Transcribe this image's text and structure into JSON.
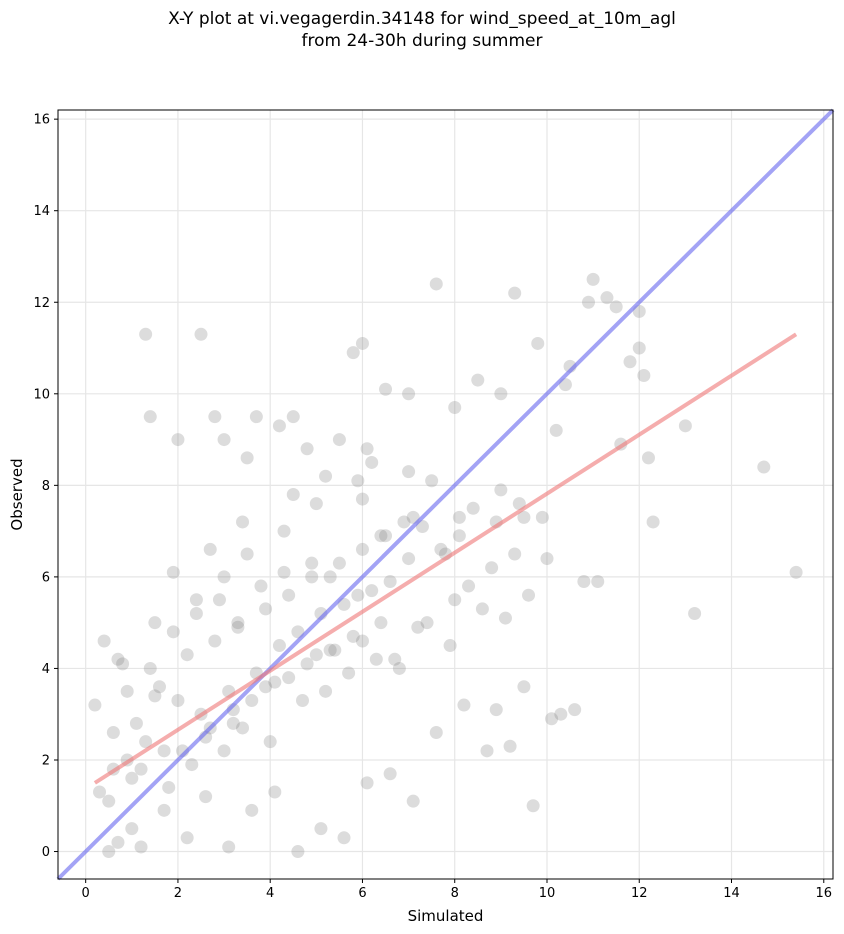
{
  "chart_data": {
    "type": "scatter",
    "title_line1": "X-Y plot at vi.vegagerdin.34148 for wind_speed_at_10m_agl",
    "title_line2": "from 24-30h during summer",
    "xlabel": "Simulated",
    "ylabel": "Observed",
    "xlim": [
      -0.6,
      16.2
    ],
    "ylim": [
      -0.6,
      16.2
    ],
    "x_ticks": [
      0,
      2,
      4,
      6,
      8,
      10,
      12,
      14,
      16
    ],
    "y_ticks": [
      0,
      2,
      4,
      6,
      8,
      10,
      12,
      14,
      16
    ],
    "grid": true,
    "colors": {
      "points": "#808080",
      "one_to_one": "#6666ee",
      "fit": "#ee7777"
    },
    "reference_lines": [
      {
        "kind": "one-to-one",
        "x": [
          -0.6,
          16.2
        ],
        "y": [
          -0.6,
          16.2
        ]
      },
      {
        "kind": "linear-fit",
        "x": [
          0.2,
          15.4
        ],
        "y": [
          1.5,
          11.3
        ]
      }
    ],
    "points": {
      "x": [
        1.3,
        2.5,
        3.7,
        11.0,
        11.3,
        10.9,
        11.5,
        12.0,
        12.1,
        11.6,
        13.0,
        14.7,
        15.4,
        13.2,
        12.3,
        9.3,
        7.6,
        10.5,
        8.5,
        9.8,
        10.2,
        9.5,
        6.0,
        5.8,
        4.5,
        4.2,
        6.5,
        7.0,
        5.5,
        3.0,
        2.0,
        1.4,
        2.8,
        3.5,
        4.8,
        6.2,
        7.5,
        8.1,
        9.0,
        10.0,
        11.1,
        12.2,
        0.5,
        0.7,
        1.0,
        0.3,
        0.6,
        0.9,
        1.2,
        1.7,
        2.2,
        2.6,
        3.1,
        3.6,
        4.1,
        4.6,
        5.1,
        5.6,
        6.1,
        6.6,
        7.1,
        7.6,
        8.2,
        8.7,
        9.2,
        9.7,
        10.3,
        0.4,
        0.8,
        1.5,
        1.9,
        2.4,
        2.9,
        3.3,
        3.8,
        4.3,
        4.9,
        5.3,
        5.9,
        6.4,
        6.9,
        7.3,
        7.8,
        8.4,
        8.9,
        9.4,
        9.9,
        10.6,
        1.1,
        1.6,
        2.1,
        2.7,
        3.2,
        3.9,
        4.4,
        5.0,
        5.4,
        6.0,
        6.7,
        7.2,
        7.9,
        8.6,
        9.1,
        9.6,
        0.2,
        0.5,
        1.0,
        1.8,
        2.3,
        3.0,
        3.4,
        4.0,
        4.7,
        5.2,
        5.7,
        6.3,
        6.8,
        7.4,
        8.0,
        8.3,
        8.8,
        9.3,
        0.6,
        1.3,
        2.0,
        2.5,
        3.1,
        3.7,
        4.2,
        4.6,
        5.1,
        5.6,
        6.2,
        6.6,
        7.0,
        7.7,
        8.1,
        0.9,
        1.4,
        2.2,
        2.8,
        3.3,
        3.9,
        4.4,
        4.9,
        5.5,
        6.0,
        6.5,
        7.1,
        1.2,
        1.7,
        2.6,
        3.2,
        3.6,
        4.1,
        4.8,
        5.3,
        5.8,
        6.4,
        0.7,
        1.5,
        2.4,
        3.0,
        3.5,
        4.3,
        5.0,
        5.9,
        1.9,
        2.7,
        3.4,
        4.5,
        5.2,
        6.1,
        10.8,
        9.5,
        8.9,
        10.1,
        11.8,
        12.0,
        10.4,
        9.0,
        8.0,
        7.0,
        6.0
      ],
      "y": [
        11.3,
        11.3,
        9.5,
        12.5,
        12.1,
        12.0,
        11.9,
        11.8,
        10.4,
        8.9,
        9.3,
        8.4,
        6.1,
        5.2,
        7.2,
        12.2,
        12.4,
        10.6,
        10.3,
        11.1,
        9.2,
        7.3,
        11.1,
        10.9,
        9.5,
        9.3,
        10.1,
        10.0,
        9.0,
        9.0,
        9.0,
        9.5,
        9.5,
        8.6,
        8.8,
        8.5,
        8.1,
        7.3,
        7.9,
        6.4,
        5.9,
        8.6,
        0.0,
        0.2,
        0.5,
        1.3,
        1.8,
        2.0,
        0.1,
        0.9,
        0.3,
        1.2,
        0.1,
        0.9,
        1.3,
        0.0,
        0.5,
        0.3,
        1.5,
        1.7,
        1.1,
        2.6,
        3.2,
        2.2,
        2.3,
        1.0,
        3.0,
        4.6,
        4.1,
        3.4,
        4.8,
        5.2,
        5.5,
        5.0,
        5.8,
        6.1,
        6.3,
        6.0,
        5.6,
        6.9,
        7.2,
        7.1,
        6.5,
        7.5,
        7.2,
        7.6,
        7.3,
        3.1,
        2.8,
        3.6,
        2.2,
        2.7,
        3.1,
        3.6,
        3.8,
        4.3,
        4.4,
        4.6,
        4.2,
        4.9,
        4.5,
        5.3,
        5.1,
        5.6,
        3.2,
        1.1,
        1.6,
        1.4,
        1.9,
        2.2,
        2.7,
        2.4,
        3.3,
        3.5,
        3.9,
        4.2,
        4.0,
        5.0,
        5.5,
        5.8,
        6.2,
        6.5,
        2.6,
        2.4,
        3.3,
        3.0,
        3.5,
        3.9,
        4.5,
        4.8,
        5.2,
        5.4,
        5.7,
        5.9,
        6.4,
        6.6,
        6.9,
        3.5,
        4.0,
        4.3,
        4.6,
        4.9,
        5.3,
        5.6,
        6.0,
        6.3,
        6.6,
        6.9,
        7.3,
        1.8,
        2.2,
        2.5,
        2.8,
        3.3,
        3.7,
        4.1,
        4.4,
        4.7,
        5.0,
        4.2,
        5.0,
        5.5,
        6.0,
        6.5,
        7.0,
        7.6,
        8.1,
        6.1,
        6.6,
        7.2,
        7.8,
        8.2,
        8.8,
        5.9,
        3.6,
        3.1,
        2.9,
        10.7,
        11.0,
        10.2,
        10.0,
        9.7,
        8.3,
        7.7
      ]
    }
  }
}
